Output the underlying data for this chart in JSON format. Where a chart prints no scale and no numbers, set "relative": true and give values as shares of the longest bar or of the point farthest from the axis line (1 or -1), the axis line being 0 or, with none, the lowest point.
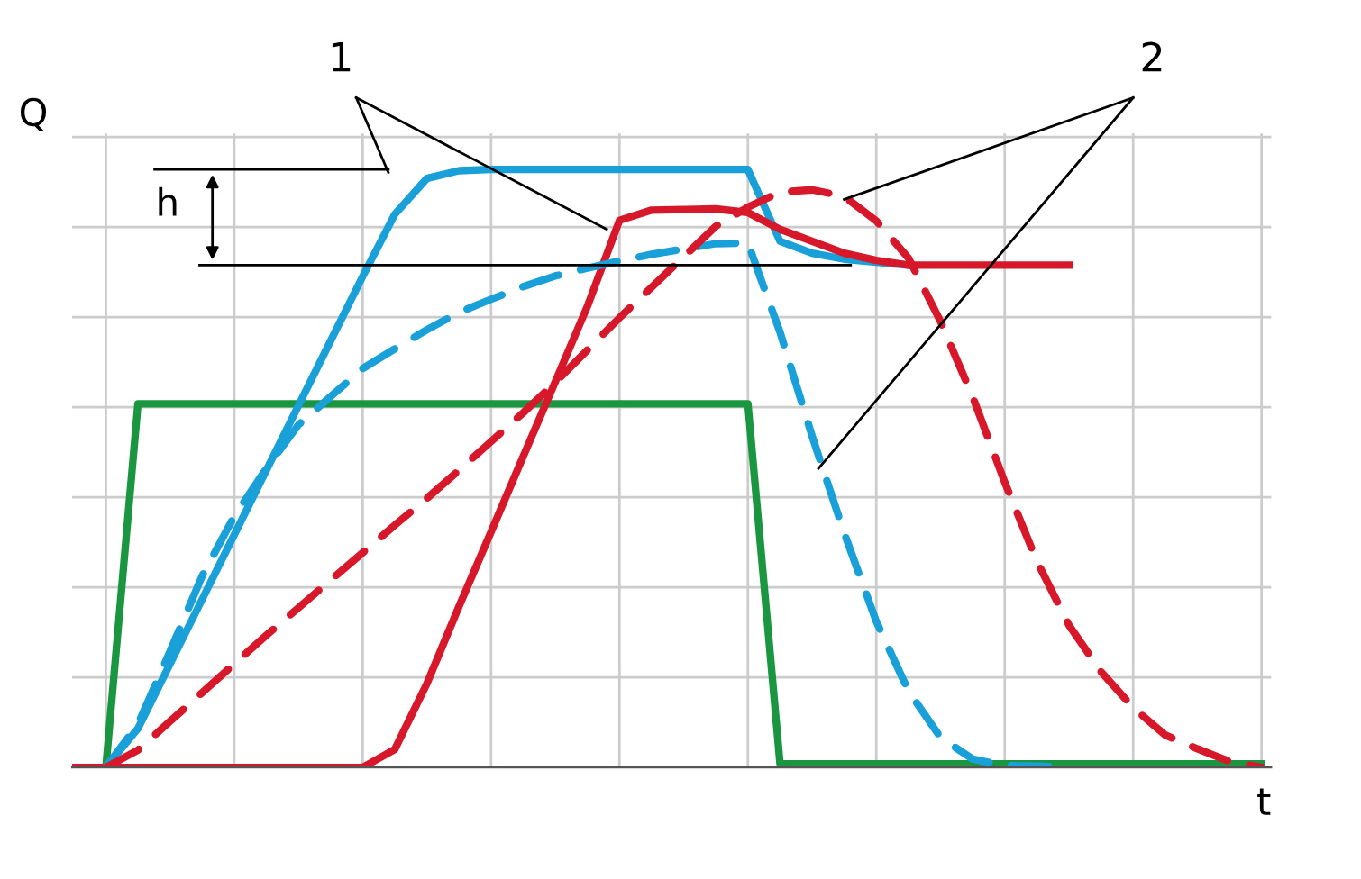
{
  "chart_data": {
    "type": "line",
    "xlabel": "t",
    "ylabel": "Q",
    "relative": true,
    "annotations": [
      "1",
      "2",
      "h"
    ],
    "categories": [
      null,
      null,
      null,
      null,
      null,
      null,
      null,
      null,
      null,
      null,
      null,
      null,
      null,
      null,
      null,
      null,
      null,
      null,
      null,
      null,
      null,
      null,
      null,
      null,
      null,
      null,
      null,
      null,
      null,
      null,
      null,
      null,
      null,
      null,
      null,
      null,
      null,
      null
    ],
    "ref_lines": [
      {
        "axis": "y",
        "value": 0.84,
        "color": "#000000"
      }
    ],
    "grid": true,
    "legend": false,
    "line_style": "solid",
    "marker": "none",
    "series": [
      {
        "color": "#1a9641",
        "values": [
          null,
          0,
          0.608,
          0.608,
          0.608,
          0.608,
          0.608,
          0.608,
          0.608,
          0.608,
          0.608,
          0.608,
          0.608,
          0.608,
          0.608,
          0.608,
          0.608,
          0.608,
          0.608,
          0.608,
          0.608,
          0.608,
          0.006,
          0.006,
          0.006,
          0.006,
          0.006,
          0.006,
          0.006,
          0.006,
          0.006,
          0.006,
          0.006,
          0.006,
          0.006,
          0.006,
          0.006,
          0.006
        ]
      },
      {
        "color": "#1aa0d8",
        "values": [
          null,
          0,
          0.065,
          0.173,
          0.281,
          0.389,
          0.497,
          0.605,
          0.713,
          0.821,
          0.925,
          0.985,
          0.998,
          1,
          1,
          1,
          1,
          1,
          1,
          1,
          1,
          1,
          0.88,
          0.86,
          0.85,
          0.845,
          0.84,
          null,
          null,
          null,
          null,
          null,
          null,
          null,
          null,
          null,
          null,
          null
        ]
      },
      {
        "color": "#d7182a",
        "values": [
          0,
          0,
          0,
          0,
          0,
          0,
          0,
          0,
          0,
          0,
          0.03,
          0.14,
          0.269,
          0.394,
          0.52,
          0.645,
          0.771,
          0.915,
          0.932,
          0.933,
          0.934,
          0.928,
          0.9,
          0.88,
          0.86,
          0.848,
          0.84,
          0.84,
          0.84,
          0.84,
          0.84,
          0.84,
          null,
          null,
          null,
          null,
          null,
          null
        ]
      },
      {
        "color": "#1aa0d8",
        "line_style": "dashed",
        "values": [
          null,
          0,
          0.072,
          0.194,
          0.32,
          0.42,
          0.5,
          0.573,
          0.62,
          0.667,
          0.7,
          0.732,
          0.761,
          0.783,
          0.804,
          0.822,
          0.835,
          0.847,
          0.858,
          0.867,
          0.876,
          0.877,
          0.728,
          0.554,
          0.392,
          0.244,
          0.128,
          0.05,
          0.014,
          0.003,
          0.002,
          0,
          null,
          null,
          null,
          null,
          null,
          null
        ]
      },
      {
        "color": "#d7182a",
        "line_style": "dashed",
        "values": [
          null,
          0,
          0.029,
          0.077,
          0.125,
          0.173,
          0.221,
          0.267,
          0.313,
          0.359,
          0.405,
          0.45,
          0.497,
          0.545,
          0.593,
          0.644,
          0.698,
          0.752,
          0.803,
          0.854,
          0.905,
          0.937,
          0.962,
          0.966,
          0.955,
          0.914,
          0.852,
          0.746,
          0.62,
          0.477,
          0.345,
          0.238,
          0.16,
          0.1,
          0.054,
          0.031,
          0.01,
          0
        ]
      }
    ]
  }
}
